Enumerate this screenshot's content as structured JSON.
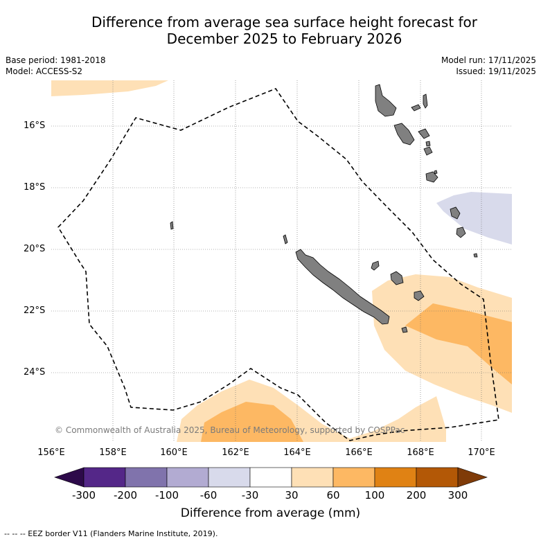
{
  "title": {
    "line1": "Difference from average sea surface height forecast for",
    "line2": "December 2025 to February 2026"
  },
  "meta": {
    "base_period": "Base period: 1981-2018",
    "model": "Model: ACCESS-S2",
    "model_run": "Model run: 17/11/2025",
    "issued": "Issued: 19/11/2025"
  },
  "axes": {
    "latitudes": [
      "16°S",
      "18°S",
      "20°S",
      "22°S",
      "24°S"
    ],
    "longitudes": [
      "156°E",
      "158°E",
      "160°E",
      "162°E",
      "164°E",
      "166°E",
      "168°E",
      "170°E"
    ]
  },
  "copyright": "© Commonwealth of Australia 2025, Bureau of Meteorology, supported by COSPPac",
  "colorbar": {
    "ticks": [
      "-300",
      "-200",
      "-100",
      "-60",
      "-30",
      "30",
      "60",
      "100",
      "200",
      "300"
    ],
    "colors": [
      "#2d0a4a",
      "#542788",
      "#8073ac",
      "#b2abd2",
      "#d8daeb",
      "#ffffff",
      "#fee0b6",
      "#fdb863",
      "#e08214",
      "#b35806",
      "#7f3b08"
    ],
    "label": "Difference from average (mm)"
  },
  "colors": {
    "land": "#808080",
    "eez": "#000000",
    "grid": "#666666"
  },
  "footnote": "-- -- -- EEZ border V11 (Flanders Marine Institute, 2019)."
}
